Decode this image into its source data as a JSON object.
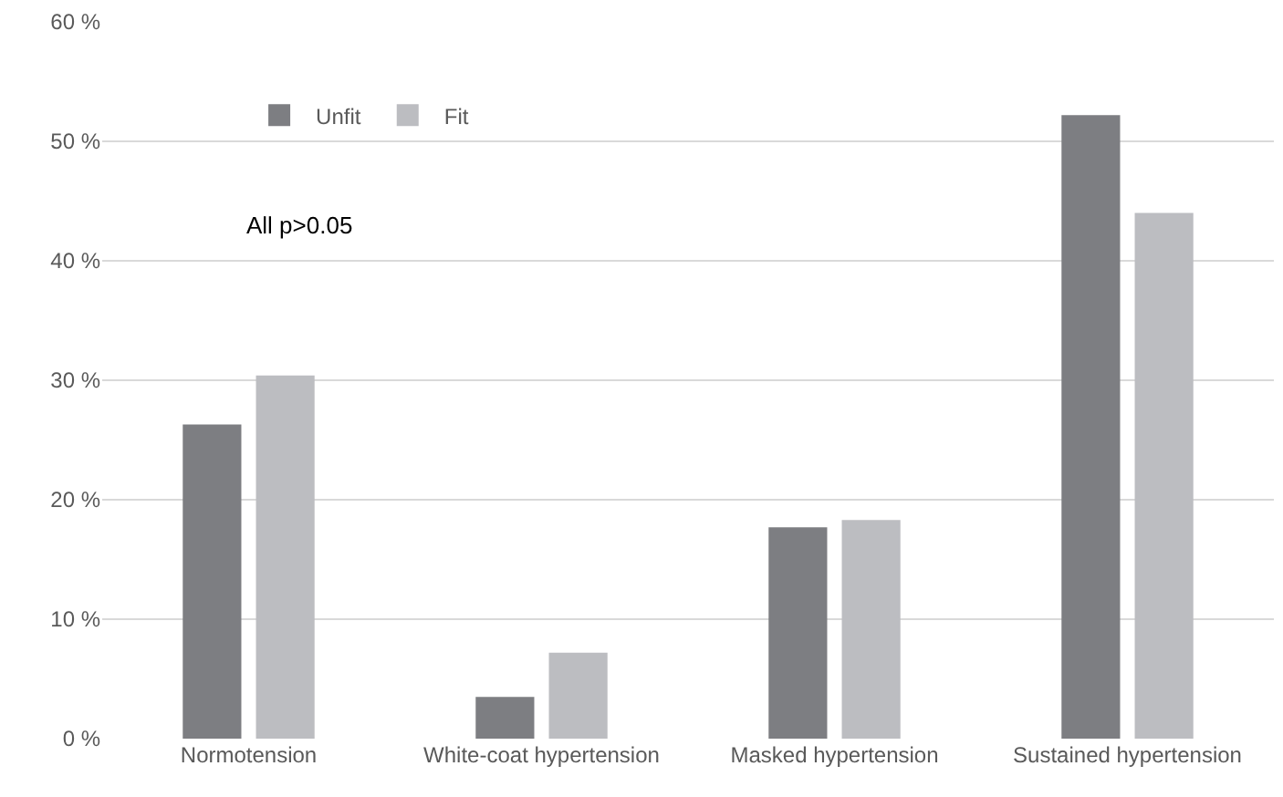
{
  "chart_data": {
    "type": "bar",
    "categories": [
      "Normotension",
      "White-coat hypertension",
      "Masked hypertension",
      "Sustained hypertension"
    ],
    "series": [
      {
        "name": "Unfit",
        "color": "#7d7e82",
        "values": [
          26.3,
          3.5,
          17.7,
          52.2
        ]
      },
      {
        "name": "Fit",
        "color": "#bcbdc1",
        "values": [
          30.4,
          7.2,
          18.3,
          44.0
        ]
      }
    ],
    "ylim": [
      0,
      60
    ],
    "yticks": [
      {
        "value": 0,
        "label": "0 %"
      },
      {
        "value": 10,
        "label": "10 %"
      },
      {
        "value": 20,
        "label": "20 %"
      },
      {
        "value": 30,
        "label": "30 %"
      },
      {
        "value": 40,
        "label": "40 %"
      },
      {
        "value": 50,
        "label": "50 %"
      },
      {
        "value": 60,
        "label": "60 %"
      }
    ],
    "grid": "y",
    "legend": "top left",
    "annotations": [
      "All p>0.05"
    ]
  }
}
